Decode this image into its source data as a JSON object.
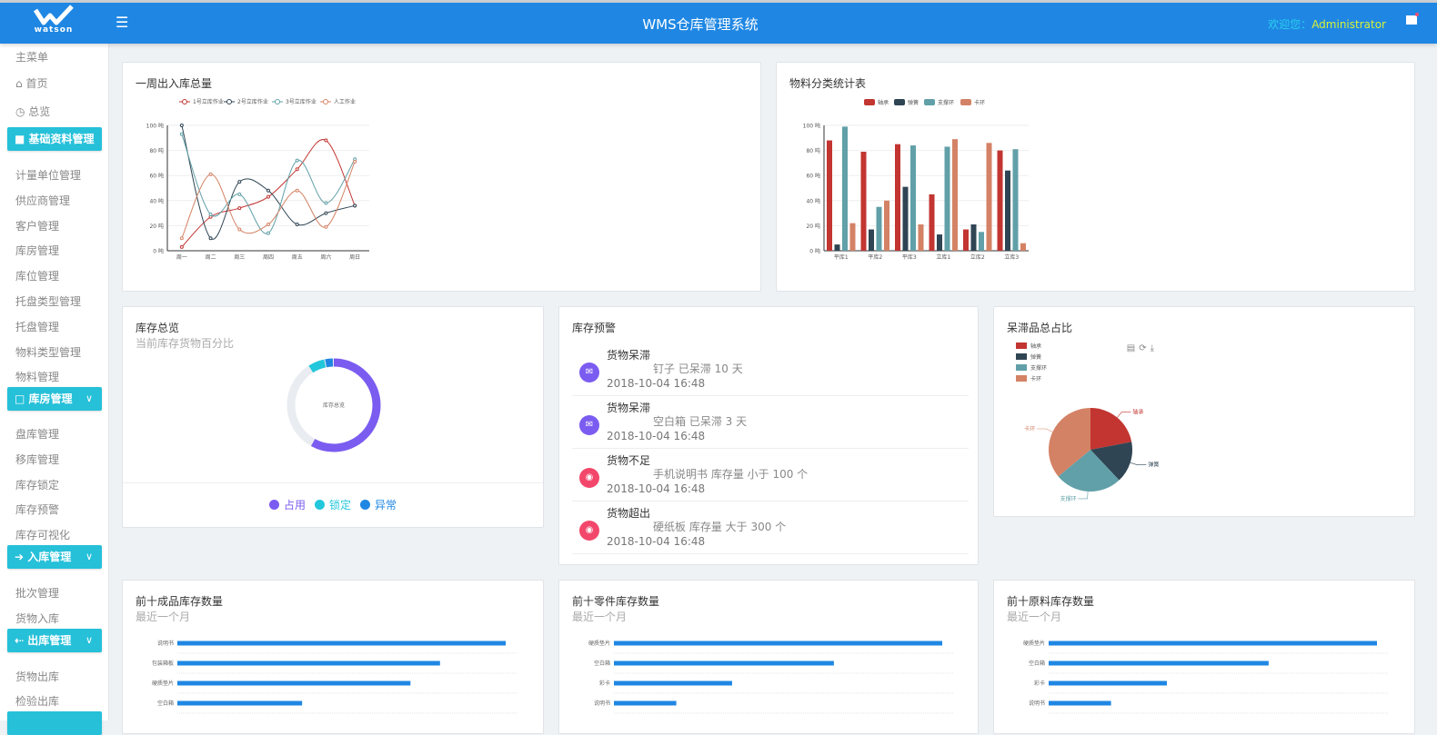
{
  "header": {
    "logo_text": "watson",
    "title": "WMS仓库管理系统",
    "welcome_label": "欢迎您：",
    "username": "Administrator",
    "menu_icon": "hamburger-icon",
    "flag_icon": "flag-icon"
  },
  "sidebar": {
    "main_label": "主菜单",
    "top_items": [
      {
        "label": "首页",
        "icon": "home-icon"
      },
      {
        "label": "总览",
        "icon": "dashboard-icon"
      }
    ],
    "groups": [
      {
        "label": "基础资料管理",
        "icon": "folder-icon",
        "items": [
          "计量单位管理",
          "供应商管理",
          "客户管理",
          "库房管理",
          "库位管理",
          "托盘类型管理",
          "托盘管理",
          "物料类型管理",
          "物料管理"
        ]
      },
      {
        "label": "库房管理",
        "icon": "warehouse-icon",
        "items": [
          "盘库管理",
          "移库管理",
          "库存锁定",
          "库存预警",
          "库存可视化"
        ]
      },
      {
        "label": "入库管理",
        "icon": "arrow-right-icon",
        "items": [
          "批次管理",
          "货物入库"
        ]
      },
      {
        "label": "出库管理",
        "icon": "arrow-left-icon",
        "items": [
          "货物出库",
          "检验出库"
        ]
      }
    ]
  },
  "cards": {
    "weekly": {
      "title": "一周出入库总量"
    },
    "material": {
      "title": "物料分类统计表"
    },
    "inventory": {
      "title": "库存总览",
      "subtitle": "当前库存货物百分比",
      "center_label": "库存总览"
    },
    "warning": {
      "title": "库存预警",
      "items": [
        {
          "type": "货物呆滞",
          "desc": "钉子 已呆滞 10 天",
          "time": "2018-10-04 16:48",
          "icon": "mail-icon",
          "color": "#7b5cf0"
        },
        {
          "type": "货物呆滞",
          "desc": "空白箱 已呆滞 3 天",
          "time": "2018-10-04 16:48",
          "icon": "mail-icon",
          "color": "#7b5cf0"
        },
        {
          "type": "货物不足",
          "desc": "手机说明书 库存量 小于 100 个",
          "time": "2018-10-04 16:48",
          "icon": "globe-icon",
          "color": "#f2476a"
        },
        {
          "type": "货物超出",
          "desc": "硬纸板 库存量 大于 300 个",
          "time": "2018-10-04 16:48",
          "icon": "globe-icon",
          "color": "#f2476a"
        }
      ]
    },
    "stale": {
      "title": "呆滞品总占比"
    },
    "top_products": {
      "title": "前十成品库存数量",
      "subtitle": "最近一个月"
    },
    "top_parts": {
      "title": "前十零件库存数量",
      "subtitle": "最近一个月"
    },
    "top_raw": {
      "title": "前十原料库存数量",
      "subtitle": "最近一个月"
    }
  },
  "chart_data": [
    {
      "type": "line",
      "smooth": true,
      "categories": [
        "周一",
        "周二",
        "周三",
        "周四",
        "周五",
        "周六",
        "周日"
      ],
      "ylim": [
        0,
        100
      ],
      "yticks": [
        "0 吨",
        "20 吨",
        "40 吨",
        "60 吨",
        "80 吨",
        "100 吨"
      ],
      "grid": true,
      "legend": "top",
      "series": [
        {
          "name": "1号立库作业",
          "color": "#c23531",
          "values": [
            3,
            27,
            34,
            43,
            65,
            88,
            36
          ]
        },
        {
          "name": "2号立库作业",
          "color": "#2f4554",
          "values": [
            100,
            10,
            55,
            48,
            21,
            30,
            36
          ]
        },
        {
          "name": "3号立库作业",
          "color": "#61a0a8",
          "values": [
            93,
            29,
            45,
            14,
            72,
            38,
            73
          ]
        },
        {
          "name": "人工作业",
          "color": "#d48265",
          "values": [
            10,
            61,
            17,
            21,
            48,
            19,
            71
          ]
        }
      ]
    },
    {
      "type": "bar",
      "categories": [
        "平库1",
        "平库2",
        "平库3",
        "立库1",
        "立库2",
        "立库3"
      ],
      "ylim": [
        0,
        100
      ],
      "yticks": [
        "0 吨",
        "20 吨",
        "40 吨",
        "60 吨",
        "80 吨",
        "100 吨"
      ],
      "grid": true,
      "legend": "top",
      "series": [
        {
          "name": "轴承",
          "color": "#c23531",
          "values": [
            88,
            79,
            85,
            45,
            17,
            80
          ]
        },
        {
          "name": "弹簧",
          "color": "#2f4554",
          "values": [
            5,
            17,
            51,
            13,
            21,
            64
          ]
        },
        {
          "name": "支撑环",
          "color": "#61a0a8",
          "values": [
            99,
            35,
            84,
            83,
            15,
            81
          ]
        },
        {
          "name": "卡环",
          "color": "#d48265",
          "values": [
            22,
            40,
            21,
            89,
            86,
            6
          ]
        }
      ]
    },
    {
      "type": "pie",
      "donut": true,
      "max": 100,
      "slices": [
        {
          "name": "占用",
          "color": "#7b5cf0",
          "value": 58
        },
        {
          "name": "锁定",
          "color": "#22c7db",
          "value": 6
        },
        {
          "name": "异常",
          "color": "#1f87e3",
          "value": 3
        }
      ]
    },
    {
      "type": "pie",
      "legend": "top-left",
      "slices": [
        {
          "name": "轴承",
          "color": "#c23531",
          "value": 22
        },
        {
          "name": "弹簧",
          "color": "#2f4554",
          "value": 16
        },
        {
          "name": "支撑环",
          "color": "#61a0a8",
          "value": 26
        },
        {
          "name": "卡环",
          "color": "#d48265",
          "value": 36
        }
      ]
    },
    {
      "type": "bar",
      "orientation": "horizontal",
      "categories": [
        "说明书",
        "包装箱板",
        "硬质垫片",
        "空白箱"
      ],
      "values": [
        100,
        80,
        71,
        38
      ],
      "color": "#1f87e3"
    },
    {
      "type": "bar",
      "orientation": "horizontal",
      "categories": [
        "硬质垫片",
        "空白箱",
        "彩卡",
        "说明书"
      ],
      "values": [
        100,
        67,
        36,
        19
      ],
      "color": "#1f87e3"
    },
    {
      "type": "bar",
      "orientation": "horizontal",
      "categories": [
        "硬质垫片",
        "空白箱",
        "彩卡",
        "说明书"
      ],
      "values": [
        100,
        67,
        36,
        19
      ],
      "color": "#1f87e3"
    }
  ]
}
